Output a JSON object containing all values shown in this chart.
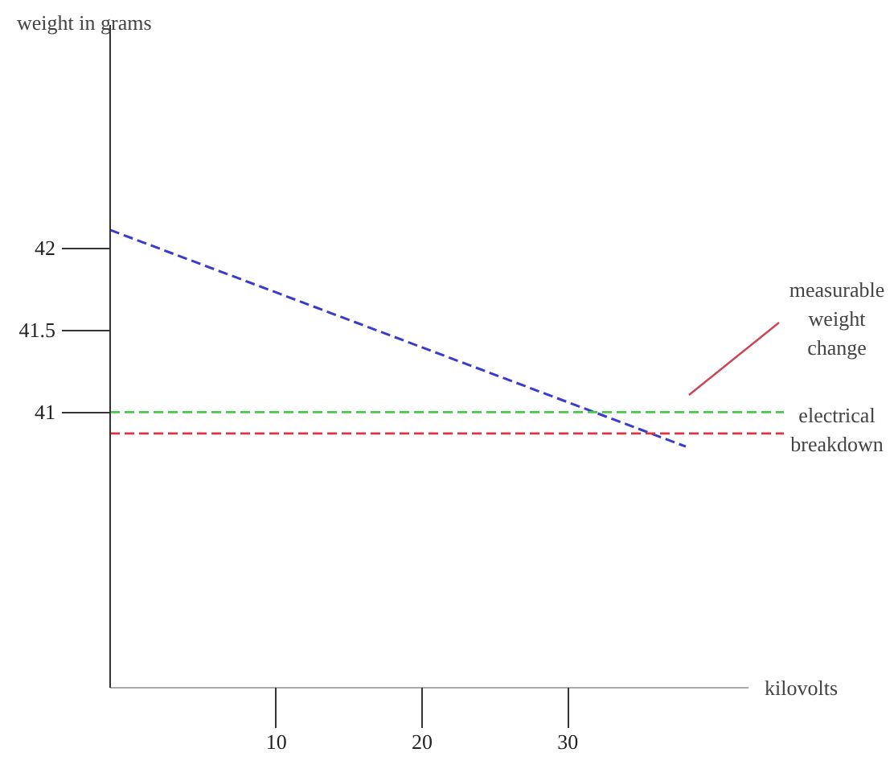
{
  "chart_data": {
    "type": "line",
    "xlabel": "kilovolts",
    "ylabel": "weight in grams",
    "x": [
      -1.4,
      38.1
    ],
    "series": [
      {
        "color": "#3a3ad0",
        "values": [
          42.11,
          40.79
        ]
      }
    ],
    "xlim": [
      -1.4,
      42.4
    ],
    "ylim": [
      39.32,
      43.36
    ],
    "xticks": [
      10,
      20,
      30
    ],
    "yticks": [
      41,
      41.5,
      42
    ],
    "ref_lines": [
      {
        "axis": "y",
        "value": 41,
        "label": "measurable weight change",
        "color": "#44cc44",
        "line_style": "dashed"
      },
      {
        "axis": "y",
        "value": 40.87,
        "label": "electrical breakdown",
        "color": "#dd3344",
        "line_style": "dashed"
      }
    ],
    "grid": false,
    "line_style": "dashed"
  }
}
